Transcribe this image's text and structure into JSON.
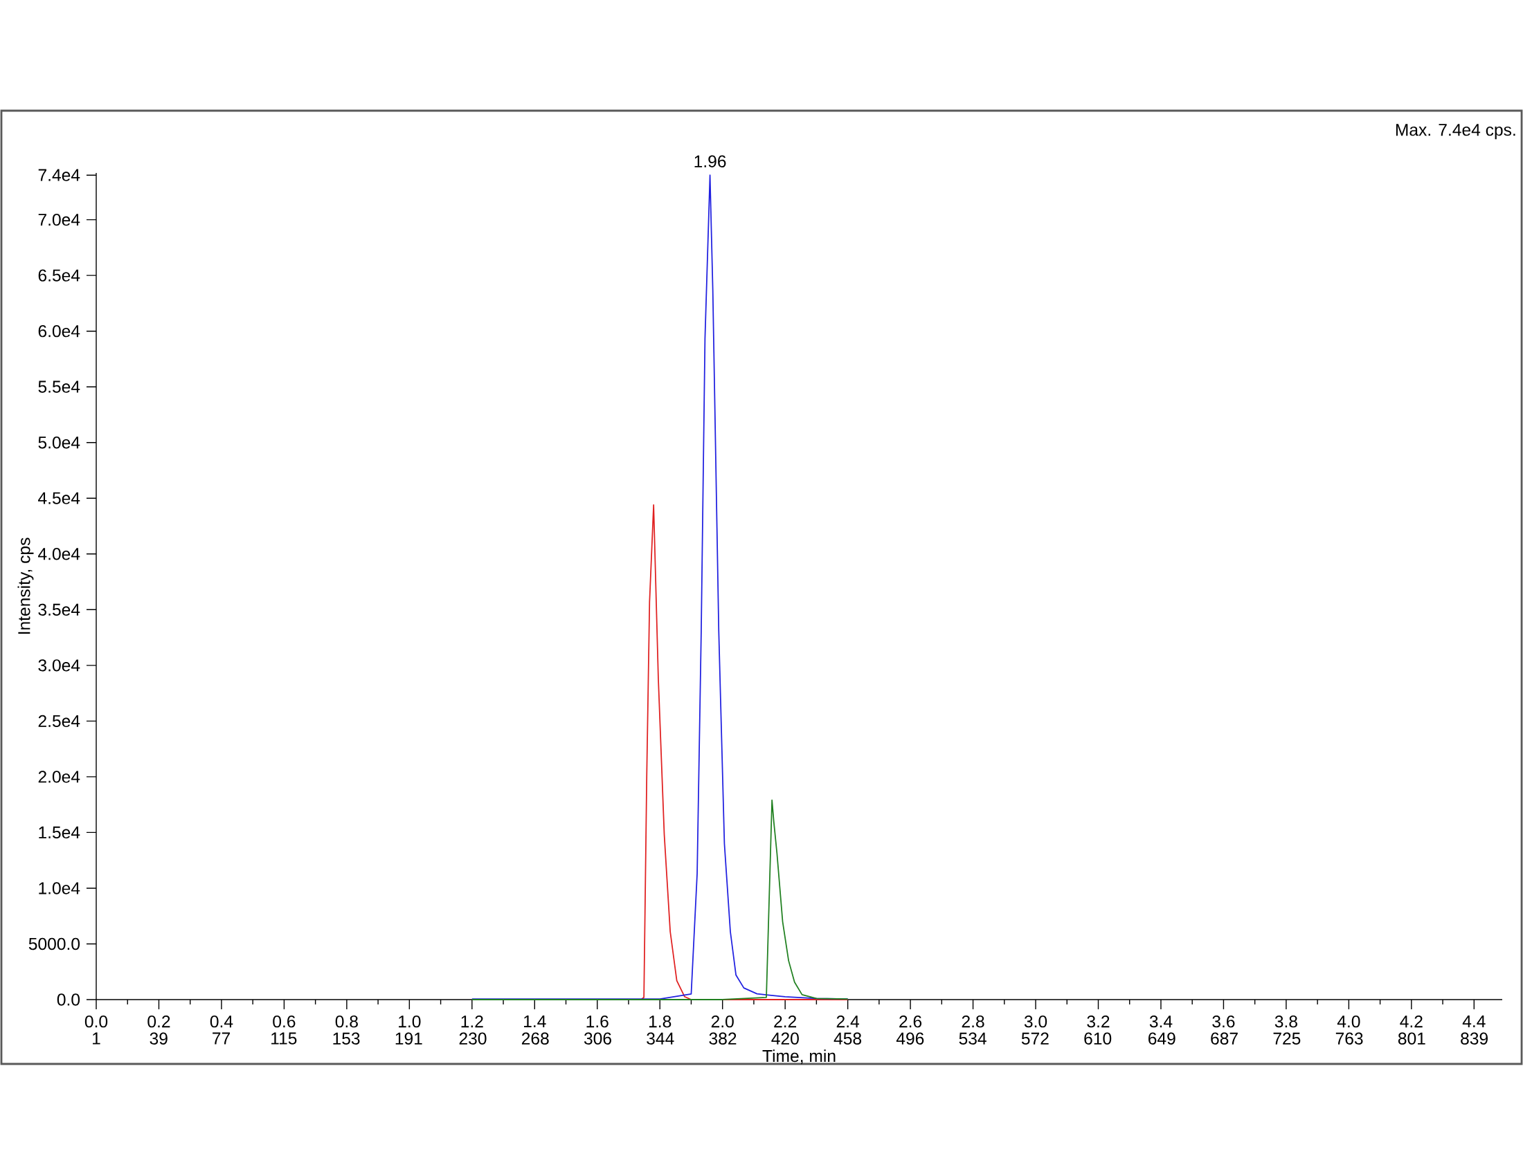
{
  "chart_data": {
    "type": "line",
    "xlabel": "Time, min",
    "ylabel": "Intensity, cps",
    "annotations": [
      {
        "text": "1.96",
        "x": 1.96,
        "y": 74000
      },
      "Max. 7.4e4 cps."
    ],
    "xlim": [
      0,
      4.49
    ],
    "ylim": [
      0,
      74200
    ],
    "xticks": [
      {
        "value": 0,
        "label": "0.0"
      },
      0.2,
      0.4,
      0.6,
      0.8,
      {
        "value": 1,
        "label": "1.0"
      },
      1.2,
      1.4,
      1.6,
      1.8,
      {
        "value": 2,
        "label": "2.0"
      },
      2.2,
      2.4,
      2.6,
      2.8,
      {
        "value": 3,
        "label": "3.0"
      },
      3.2,
      3.4,
      3.6,
      3.8,
      {
        "value": 4,
        "label": "4.0"
      },
      4.2,
      4.4
    ],
    "x2lim": [
      1,
      856
    ],
    "x2ticks": [
      1,
      39,
      77,
      115,
      153,
      191,
      230,
      268,
      306,
      344,
      382,
      420,
      458,
      496,
      534,
      572,
      610,
      649,
      687,
      725,
      763,
      801,
      839
    ],
    "yticks": [
      {
        "value": 0,
        "label": "0.0"
      },
      {
        "value": 5000,
        "label": "5000.0"
      },
      {
        "value": 10000,
        "label": "1.0e4"
      },
      {
        "value": 15000,
        "label": "1.5e4"
      },
      {
        "value": 20000,
        "label": "2.0e4"
      },
      {
        "value": 25000,
        "label": "2.5e4"
      },
      {
        "value": 30000,
        "label": "3.0e4"
      },
      {
        "value": 35000,
        "label": "3.5e4"
      },
      {
        "value": 40000,
        "label": "4.0e4"
      },
      {
        "value": 45000,
        "label": "4.5e4"
      },
      {
        "value": 50000,
        "label": "5.0e4"
      },
      {
        "value": 55000,
        "label": "5.5e4"
      },
      {
        "value": 60000,
        "label": "6.0e4"
      },
      {
        "value": 65000,
        "label": "6.5e4"
      },
      {
        "value": 70000,
        "label": "7.0e4"
      },
      {
        "value": 74000,
        "label": "7.4e4"
      }
    ],
    "series": [
      {
        "color": "#e02020",
        "x": [
          1.2,
          1.5,
          1.74,
          1.749,
          1.758,
          1.767,
          1.78,
          1.795,
          1.814,
          1.833,
          1.854,
          1.879,
          1.9,
          2.1,
          2.4
        ],
        "values": [
          0,
          0,
          0,
          200,
          20000,
          35700,
          44400,
          28800,
          14800,
          6100,
          1700,
          260,
          0,
          0,
          0
        ]
      },
      {
        "color": "#2020e0",
        "x": [
          1.2,
          1.5,
          1.8,
          1.9,
          1.919,
          1.932,
          1.944,
          1.96,
          1.969,
          1.988,
          2.006,
          2.025,
          2.043,
          2.068,
          2.11,
          2.15,
          2.2,
          2.3,
          2.4
        ],
        "values": [
          50,
          50,
          50,
          500,
          11300,
          33100,
          59300,
          74000,
          63700,
          33100,
          14000,
          6100,
          2200,
          1050,
          520,
          400,
          250,
          100,
          50
        ]
      },
      {
        "color": "#208020",
        "x": [
          1.2,
          1.5,
          2.0,
          2.14,
          2.158,
          2.164,
          2.174,
          2.192,
          2.211,
          2.23,
          2.254,
          2.3,
          2.4
        ],
        "values": [
          0,
          0,
          0,
          200,
          17900,
          15900,
          13100,
          7000,
          3500,
          1570,
          440,
          100,
          50
        ]
      }
    ]
  }
}
